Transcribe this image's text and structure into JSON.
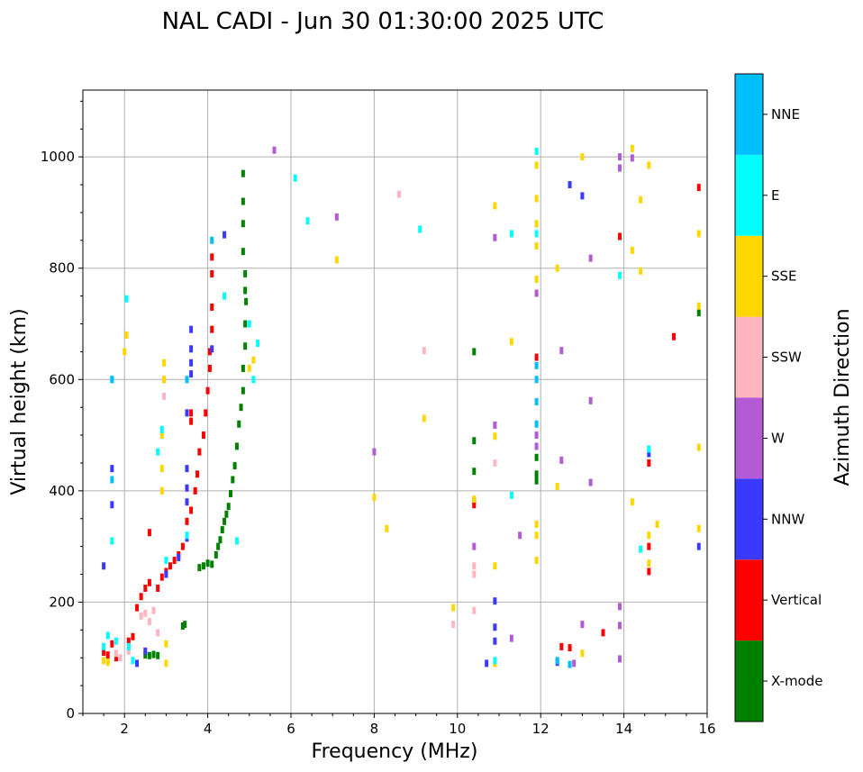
{
  "chart_data": {
    "type": "scatter",
    "title": "NAL CADI - Jun 30 01:30:00 2025 UTC",
    "xlabel": "Frequency (MHz)",
    "ylabel": "Virtual height (km)",
    "xlim": [
      1,
      16
    ],
    "ylim": [
      0,
      1120
    ],
    "xticks": [
      2,
      4,
      6,
      8,
      10,
      12,
      14,
      16
    ],
    "yticks": [
      0,
      200,
      400,
      600,
      800,
      1000
    ],
    "grid": true,
    "colorbar": {
      "label": "Azimuth Direction",
      "categories": [
        {
          "name": "X-mode",
          "color": "#008000"
        },
        {
          "name": "Vertical",
          "color": "#ff0000"
        },
        {
          "name": "NNW",
          "color": "#3a3aff"
        },
        {
          "name": "W",
          "color": "#b35ad6"
        },
        {
          "name": "SSW",
          "color": "#ffb6c1"
        },
        {
          "name": "SSE",
          "color": "#ffd700"
        },
        {
          "name": "E",
          "color": "#00ffff"
        },
        {
          "name": "NNE",
          "color": "#00bfff"
        }
      ]
    },
    "series": [
      {
        "name": "X-mode",
        "points": [
          [
            2.5,
            105
          ],
          [
            2.6,
            104
          ],
          [
            2.7,
            106
          ],
          [
            2.8,
            104
          ],
          [
            3.4,
            157
          ],
          [
            3.45,
            160
          ],
          [
            3.8,
            262
          ],
          [
            3.9,
            265
          ],
          [
            4.0,
            270
          ],
          [
            4.1,
            268
          ],
          [
            4.2,
            285
          ],
          [
            4.25,
            300
          ],
          [
            4.3,
            312
          ],
          [
            4.35,
            330
          ],
          [
            4.4,
            345
          ],
          [
            4.45,
            358
          ],
          [
            4.5,
            372
          ],
          [
            4.55,
            395
          ],
          [
            4.6,
            420
          ],
          [
            4.65,
            445
          ],
          [
            4.7,
            480
          ],
          [
            4.75,
            520
          ],
          [
            4.8,
            550
          ],
          [
            4.85,
            580
          ],
          [
            4.85,
            620
          ],
          [
            4.9,
            660
          ],
          [
            4.9,
            700
          ],
          [
            4.92,
            740
          ],
          [
            4.9,
            760
          ],
          [
            4.9,
            790
          ],
          [
            4.85,
            830
          ],
          [
            4.85,
            880
          ],
          [
            4.85,
            920
          ],
          [
            4.85,
            970
          ],
          [
            10.4,
            650
          ],
          [
            10.4,
            490
          ],
          [
            10.4,
            435
          ],
          [
            10.4,
            382
          ],
          [
            11.9,
            418
          ],
          [
            11.9,
            430
          ],
          [
            11.9,
            460
          ],
          [
            15.8,
            720
          ]
        ]
      },
      {
        "name": "Vertical",
        "points": [
          [
            1.5,
            110
          ],
          [
            1.6,
            105
          ],
          [
            1.7,
            125
          ],
          [
            1.8,
            100
          ],
          [
            2.1,
            130
          ],
          [
            2.2,
            138
          ],
          [
            2.3,
            190
          ],
          [
            2.4,
            210
          ],
          [
            2.5,
            225
          ],
          [
            2.6,
            235
          ],
          [
            2.6,
            325
          ],
          [
            2.8,
            225
          ],
          [
            2.9,
            245
          ],
          [
            3.0,
            255
          ],
          [
            3.1,
            265
          ],
          [
            3.2,
            275
          ],
          [
            3.3,
            285
          ],
          [
            3.4,
            300
          ],
          [
            3.5,
            345
          ],
          [
            3.6,
            365
          ],
          [
            3.7,
            400
          ],
          [
            3.75,
            430
          ],
          [
            3.8,
            470
          ],
          [
            3.9,
            500
          ],
          [
            3.95,
            540
          ],
          [
            4.0,
            580
          ],
          [
            4.05,
            620
          ],
          [
            4.05,
            650
          ],
          [
            4.1,
            690
          ],
          [
            4.1,
            730
          ],
          [
            4.1,
            790
          ],
          [
            4.1,
            820
          ],
          [
            3.6,
            525
          ],
          [
            3.6,
            540
          ],
          [
            10.4,
            375
          ],
          [
            11.9,
            640
          ],
          [
            12.5,
            120
          ],
          [
            12.7,
            118
          ],
          [
            13.5,
            145
          ],
          [
            13.9,
            857
          ],
          [
            14.6,
            255
          ],
          [
            14.6,
            300
          ],
          [
            14.6,
            450
          ],
          [
            15.2,
            677
          ],
          [
            15.8,
            945
          ]
        ]
      },
      {
        "name": "NNW",
        "points": [
          [
            1.5,
            265
          ],
          [
            1.7,
            375
          ],
          [
            1.7,
            440
          ],
          [
            2.3,
            90
          ],
          [
            2.5,
            112
          ],
          [
            3.0,
            250
          ],
          [
            3.3,
            280
          ],
          [
            3.5,
            315
          ],
          [
            3.5,
            380
          ],
          [
            3.5,
            405
          ],
          [
            3.5,
            440
          ],
          [
            3.5,
            540
          ],
          [
            3.6,
            610
          ],
          [
            3.6,
            630
          ],
          [
            3.6,
            655
          ],
          [
            3.6,
            690
          ],
          [
            4.1,
            655
          ],
          [
            4.4,
            860
          ],
          [
            10.9,
            202
          ],
          [
            10.9,
            155
          ],
          [
            10.9,
            130
          ],
          [
            10.7,
            90
          ],
          [
            12.4,
            92
          ],
          [
            12.7,
            950
          ],
          [
            13.0,
            930
          ],
          [
            14.6,
            467
          ],
          [
            15.8,
            300
          ]
        ]
      },
      {
        "name": "W",
        "points": [
          [
            8.0,
            470
          ],
          [
            10.4,
            300
          ],
          [
            10.9,
            518
          ],
          [
            10.9,
            855
          ],
          [
            11.3,
            135
          ],
          [
            11.5,
            320
          ],
          [
            11.9,
            480
          ],
          [
            11.9,
            500
          ],
          [
            11.9,
            755
          ],
          [
            12.5,
            455
          ],
          [
            12.5,
            652
          ],
          [
            12.8,
            90
          ],
          [
            13.0,
            160
          ],
          [
            13.2,
            818
          ],
          [
            13.2,
            562
          ],
          [
            13.2,
            415
          ],
          [
            13.9,
            1000
          ],
          [
            13.9,
            980
          ],
          [
            13.9,
            192
          ],
          [
            13.9,
            158
          ],
          [
            13.9,
            98
          ],
          [
            14.2,
            998
          ],
          [
            5.6,
            1012
          ],
          [
            7.1,
            892
          ]
        ]
      },
      {
        "name": "SSW",
        "points": [
          [
            1.8,
            108
          ],
          [
            1.9,
            100
          ],
          [
            2.1,
            112
          ],
          [
            2.4,
            175
          ],
          [
            2.5,
            180
          ],
          [
            2.6,
            165
          ],
          [
            2.7,
            185
          ],
          [
            2.8,
            145
          ],
          [
            2.95,
            570
          ],
          [
            2.95,
            600
          ],
          [
            8.6,
            933
          ],
          [
            9.2,
            652
          ],
          [
            9.9,
            160
          ],
          [
            10.4,
            265
          ],
          [
            10.4,
            250
          ],
          [
            10.4,
            185
          ],
          [
            10.9,
            450
          ]
        ]
      },
      {
        "name": "SSE",
        "points": [
          [
            1.5,
            95
          ],
          [
            1.6,
            92
          ],
          [
            2.0,
            650
          ],
          [
            2.05,
            680
          ],
          [
            2.9,
            400
          ],
          [
            2.9,
            440
          ],
          [
            2.9,
            500
          ],
          [
            2.95,
            600
          ],
          [
            2.95,
            630
          ],
          [
            3.0,
            90
          ],
          [
            3.0,
            125
          ],
          [
            5.0,
            620
          ],
          [
            5.1,
            635
          ],
          [
            7.1,
            815
          ],
          [
            8.0,
            388
          ],
          [
            8.3,
            332
          ],
          [
            9.2,
            530
          ],
          [
            9.9,
            190
          ],
          [
            10.4,
            385
          ],
          [
            10.9,
            912
          ],
          [
            10.9,
            498
          ],
          [
            10.9,
            265
          ],
          [
            10.9,
            90
          ],
          [
            11.3,
            668
          ],
          [
            11.9,
            985
          ],
          [
            11.9,
            925
          ],
          [
            11.9,
            880
          ],
          [
            11.9,
            840
          ],
          [
            11.9,
            780
          ],
          [
            11.9,
            340
          ],
          [
            11.9,
            320
          ],
          [
            11.9,
            275
          ],
          [
            12.4,
            800
          ],
          [
            12.4,
            408
          ],
          [
            13.0,
            1000
          ],
          [
            13.0,
            108
          ],
          [
            14.2,
            1015
          ],
          [
            14.2,
            832
          ],
          [
            14.2,
            380
          ],
          [
            14.4,
            923
          ],
          [
            14.4,
            795
          ],
          [
            14.6,
            985
          ],
          [
            14.6,
            320
          ],
          [
            14.6,
            270
          ],
          [
            14.8,
            340
          ],
          [
            15.8,
            862
          ],
          [
            15.8,
            732
          ],
          [
            15.8,
            478
          ],
          [
            15.8,
            332
          ]
        ]
      },
      {
        "name": "E",
        "points": [
          [
            1.5,
            120
          ],
          [
            1.6,
            140
          ],
          [
            1.7,
            600
          ],
          [
            1.7,
            310
          ],
          [
            1.8,
            130
          ],
          [
            2.05,
            745
          ],
          [
            2.1,
            120
          ],
          [
            2.2,
            95
          ],
          [
            2.8,
            470
          ],
          [
            2.9,
            510
          ],
          [
            3.0,
            275
          ],
          [
            3.5,
            320
          ],
          [
            4.4,
            750
          ],
          [
            4.7,
            310
          ],
          [
            5.0,
            700
          ],
          [
            5.1,
            600
          ],
          [
            5.2,
            665
          ],
          [
            6.1,
            962
          ],
          [
            6.4,
            885
          ],
          [
            9.1,
            870
          ],
          [
            10.9,
            95
          ],
          [
            11.3,
            862
          ],
          [
            11.3,
            392
          ],
          [
            11.9,
            1010
          ],
          [
            11.9,
            862
          ],
          [
            14.4,
            295
          ],
          [
            13.9,
            787
          ],
          [
            14.6,
            475
          ]
        ]
      },
      {
        "name": "NNE",
        "points": [
          [
            1.7,
            420
          ],
          [
            1.7,
            600
          ],
          [
            3.5,
            600
          ],
          [
            4.1,
            850
          ],
          [
            11.9,
            520
          ],
          [
            11.9,
            560
          ],
          [
            11.9,
            600
          ],
          [
            11.9,
            625
          ],
          [
            12.4,
            95
          ],
          [
            12.7,
            88
          ]
        ]
      }
    ]
  }
}
